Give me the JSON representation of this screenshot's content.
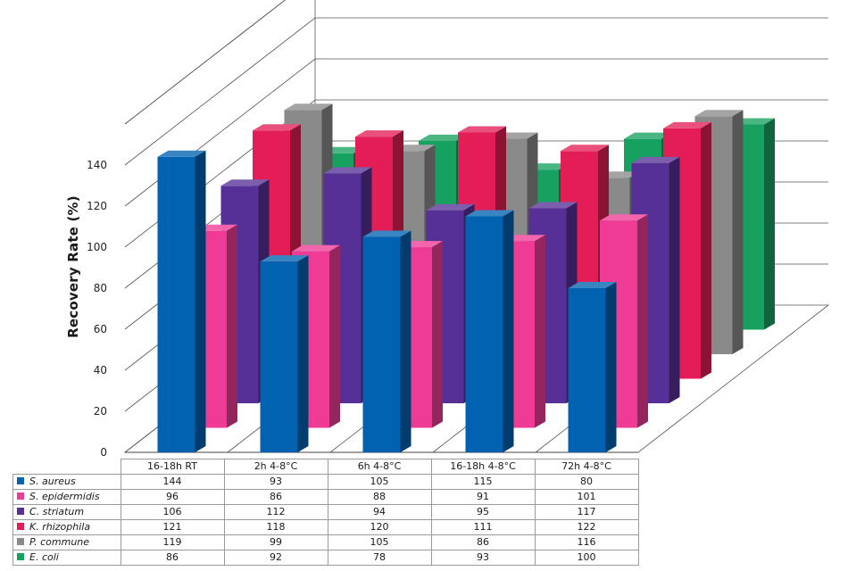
{
  "chart_data": {
    "type": "bar",
    "style": "3d-grouped",
    "title": "",
    "xlabel": "",
    "ylabel": "Recovery Rate (%)",
    "ylim": [
      0,
      140
    ],
    "yticks": [
      0,
      20,
      40,
      60,
      80,
      100,
      120,
      140
    ],
    "categories": [
      "16-18h RT",
      "2h 4-8°C",
      "6h 4-8°C",
      "16-18h 4-8°C",
      "72h 4-8°C"
    ],
    "series": [
      {
        "name": "S. aureus",
        "color": "#0062b1",
        "values": [
          144,
          93,
          105,
          115,
          80
        ]
      },
      {
        "name": "S. epidermidis",
        "color": "#ef3b96",
        "values": [
          96,
          86,
          88,
          91,
          101
        ]
      },
      {
        "name": "C. striatum",
        "color": "#573097",
        "values": [
          106,
          112,
          94,
          95,
          117
        ]
      },
      {
        "name": "K. rhizophila",
        "color": "#e31e56",
        "values": [
          121,
          118,
          120,
          111,
          122
        ]
      },
      {
        "name": "P. commune",
        "color": "#8a8a8a",
        "values": [
          119,
          99,
          105,
          86,
          116
        ]
      },
      {
        "name": "E. coli",
        "color": "#17a160",
        "values": [
          86,
          92,
          78,
          93,
          100
        ]
      }
    ],
    "grid": true,
    "legend": "data-table-below"
  }
}
